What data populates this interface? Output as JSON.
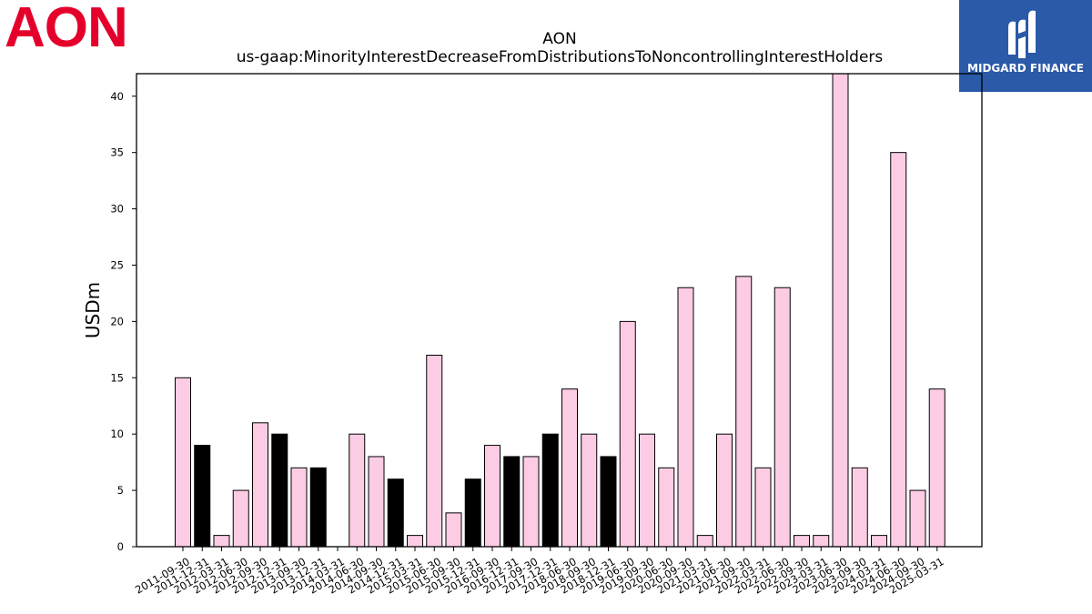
{
  "company_logo": "AON",
  "sponsor": {
    "name": "MIDGARD FINANCE",
    "logo_icon": "midgard-m-icon",
    "background": "#2a5aa8"
  },
  "colors": {
    "highlight": "#fccce4",
    "alternate": "#000000",
    "brand": "#e4002b"
  },
  "chart_data": {
    "type": "bar",
    "title": "AON",
    "subtitle": "us-gaap:MinorityInterestDecreaseFromDistributionsToNoncontrollingInterestHolders",
    "xlabel": "",
    "ylabel": "USDm",
    "ylim": [
      0,
      42
    ],
    "yticks": [
      0,
      5,
      10,
      15,
      20,
      25,
      30,
      35,
      40
    ],
    "grid": false,
    "categories": [
      "2011-09-30",
      "2011-12-31",
      "2012-03-31",
      "2012-06-30",
      "2012-09-30",
      "2012-12-31",
      "2013-09-30",
      "2013-12-31",
      "2014-03-31",
      "2014-06-30",
      "2014-09-30",
      "2014-12-31",
      "2015-03-31",
      "2015-06-30",
      "2015-09-30",
      "2015-12-31",
      "2016-09-30",
      "2016-12-31",
      "2017-09-30",
      "2017-12-31",
      "2018-06-30",
      "2018-09-30",
      "2018-12-31",
      "2019-06-30",
      "2019-09-30",
      "2020-06-30",
      "2020-09-30",
      "2021-03-31",
      "2021-06-30",
      "2021-09-30",
      "2022-03-31",
      "2022-06-30",
      "2022-09-30",
      "2023-03-31",
      "2023-06-30",
      "2023-09-30",
      "2024-03-31",
      "2024-06-30",
      "2024-09-30",
      "2025-03-31"
    ],
    "values": [
      15,
      9,
      1,
      5,
      11,
      10,
      7,
      7,
      0,
      10,
      8,
      6,
      1,
      17,
      3,
      6,
      9,
      8,
      8,
      10,
      14,
      10,
      8,
      20,
      10,
      7,
      23,
      1,
      10,
      24,
      7,
      23,
      1,
      1,
      42,
      7,
      1,
      35,
      5,
      14
    ],
    "bar_colors": [
      "highlight",
      "alternate",
      "highlight",
      "highlight",
      "highlight",
      "alternate",
      "highlight",
      "alternate",
      "highlight",
      "highlight",
      "highlight",
      "alternate",
      "highlight",
      "highlight",
      "highlight",
      "alternate",
      "highlight",
      "alternate",
      "highlight",
      "alternate",
      "highlight",
      "highlight",
      "alternate",
      "highlight",
      "highlight",
      "highlight",
      "highlight",
      "highlight",
      "highlight",
      "highlight",
      "highlight",
      "highlight",
      "highlight",
      "highlight",
      "highlight",
      "highlight",
      "highlight",
      "highlight",
      "highlight",
      "highlight"
    ]
  }
}
